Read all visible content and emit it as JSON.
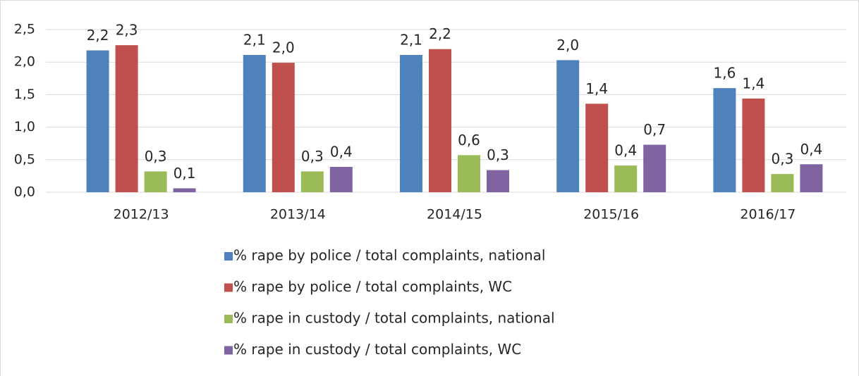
{
  "chart_data": {
    "type": "bar",
    "categories": [
      "2012/13",
      "2013/14",
      "2014/15",
      "2015/16",
      "2016/17"
    ],
    "series": [
      {
        "name": "% rape by police / total complaints, national",
        "color": "#4f81bd",
        "values": [
          2.18,
          2.11,
          2.11,
          2.03,
          1.6
        ],
        "value_labels": [
          "2,2",
          "2,1",
          "2,1",
          "2,0",
          "1,6"
        ]
      },
      {
        "name": "% rape by police / total complaints, WC",
        "color": "#c0504d",
        "values": [
          2.26,
          1.99,
          2.2,
          1.36,
          1.44
        ],
        "value_labels": [
          "2,3",
          "2,0",
          "2,2",
          "1,4",
          "1,4"
        ]
      },
      {
        "name": "% rape in custody / total complaints, national",
        "color": "#9bbb59",
        "values": [
          0.32,
          0.32,
          0.57,
          0.41,
          0.28
        ],
        "value_labels": [
          "0,3",
          "0,3",
          "0,6",
          "0,4",
          "0,3"
        ]
      },
      {
        "name": "% rape in custody / total complaints, WC",
        "color": "#8064a2",
        "values": [
          0.06,
          0.39,
          0.34,
          0.73,
          0.43
        ],
        "value_labels": [
          "0,1",
          "0,4",
          "0,3",
          "0,7",
          "0,4"
        ]
      }
    ],
    "ylim": [
      0,
      2.5
    ],
    "yticks": [
      {
        "value": 0,
        "label": "0,0"
      },
      {
        "value": 0.5,
        "label": "0,5"
      },
      {
        "value": 1,
        "label": "1,0"
      },
      {
        "value": 1.5,
        "label": "1,5"
      },
      {
        "value": 2,
        "label": "2,0"
      },
      {
        "value": 2.5,
        "label": "2,5"
      }
    ],
    "grid": true,
    "legend": "bottom"
  }
}
